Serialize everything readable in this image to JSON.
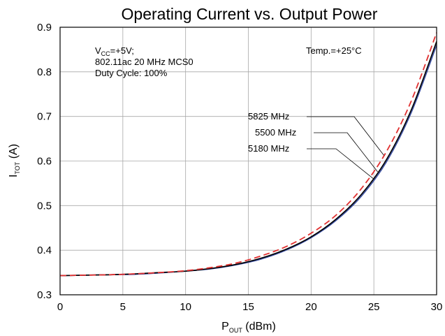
{
  "chart_data": {
    "type": "line",
    "title": "Operating Current vs. Output Power",
    "xlabel": {
      "main": "P",
      "sub": "OUT",
      "suffix": " (dBm)"
    },
    "ylabel": {
      "main": "I",
      "sub": "TOT",
      "suffix": " (A)"
    },
    "xlim": [
      0,
      30
    ],
    "ylim": [
      0.3,
      0.9
    ],
    "xticks": [
      "0",
      "5",
      "10",
      "15",
      "20",
      "25",
      "30"
    ],
    "yticks": [
      "0.3",
      "0.4",
      "0.5",
      "0.6",
      "0.7",
      "0.8",
      "0.9"
    ],
    "grid": true,
    "conditions": {
      "vcc_main": "V",
      "vcc_sub": "CC",
      "vcc_value": "=+5V;",
      "mode": "802.11ac 20 MHz MCS0",
      "duty": "Duty Cycle: 100%"
    },
    "temperature": "Temp.=+25°C",
    "series": [
      {
        "name": "5825 MHz",
        "color": "#e03030",
        "dash": true,
        "x": [
          0,
          2,
          4,
          6,
          8,
          10,
          12,
          14,
          16,
          18,
          20,
          22,
          24,
          26,
          28,
          30
        ],
        "y": [
          0.343,
          0.344,
          0.345,
          0.347,
          0.35,
          0.354,
          0.361,
          0.371,
          0.387,
          0.408,
          0.438,
          0.479,
          0.538,
          0.621,
          0.736,
          0.888
        ]
      },
      {
        "name": "5500 MHz",
        "color": "#000000",
        "dash": false,
        "x": [
          0,
          2,
          4,
          6,
          8,
          10,
          12,
          14,
          16,
          18,
          20,
          22,
          24,
          26,
          28,
          30
        ],
        "y": [
          0.343,
          0.344,
          0.345,
          0.347,
          0.35,
          0.353,
          0.359,
          0.368,
          0.382,
          0.402,
          0.43,
          0.47,
          0.525,
          0.603,
          0.716,
          0.868
        ]
      },
      {
        "name": "5180 MHz",
        "color": "#3a4ea0",
        "dash": false,
        "x": [
          0,
          2,
          4,
          6,
          8,
          10,
          12,
          14,
          16,
          18,
          20,
          22,
          24,
          26,
          28,
          30
        ],
        "y": [
          0.343,
          0.344,
          0.345,
          0.346,
          0.349,
          0.353,
          0.358,
          0.367,
          0.38,
          0.4,
          0.428,
          0.467,
          0.521,
          0.598,
          0.71,
          0.86
        ]
      }
    ]
  }
}
